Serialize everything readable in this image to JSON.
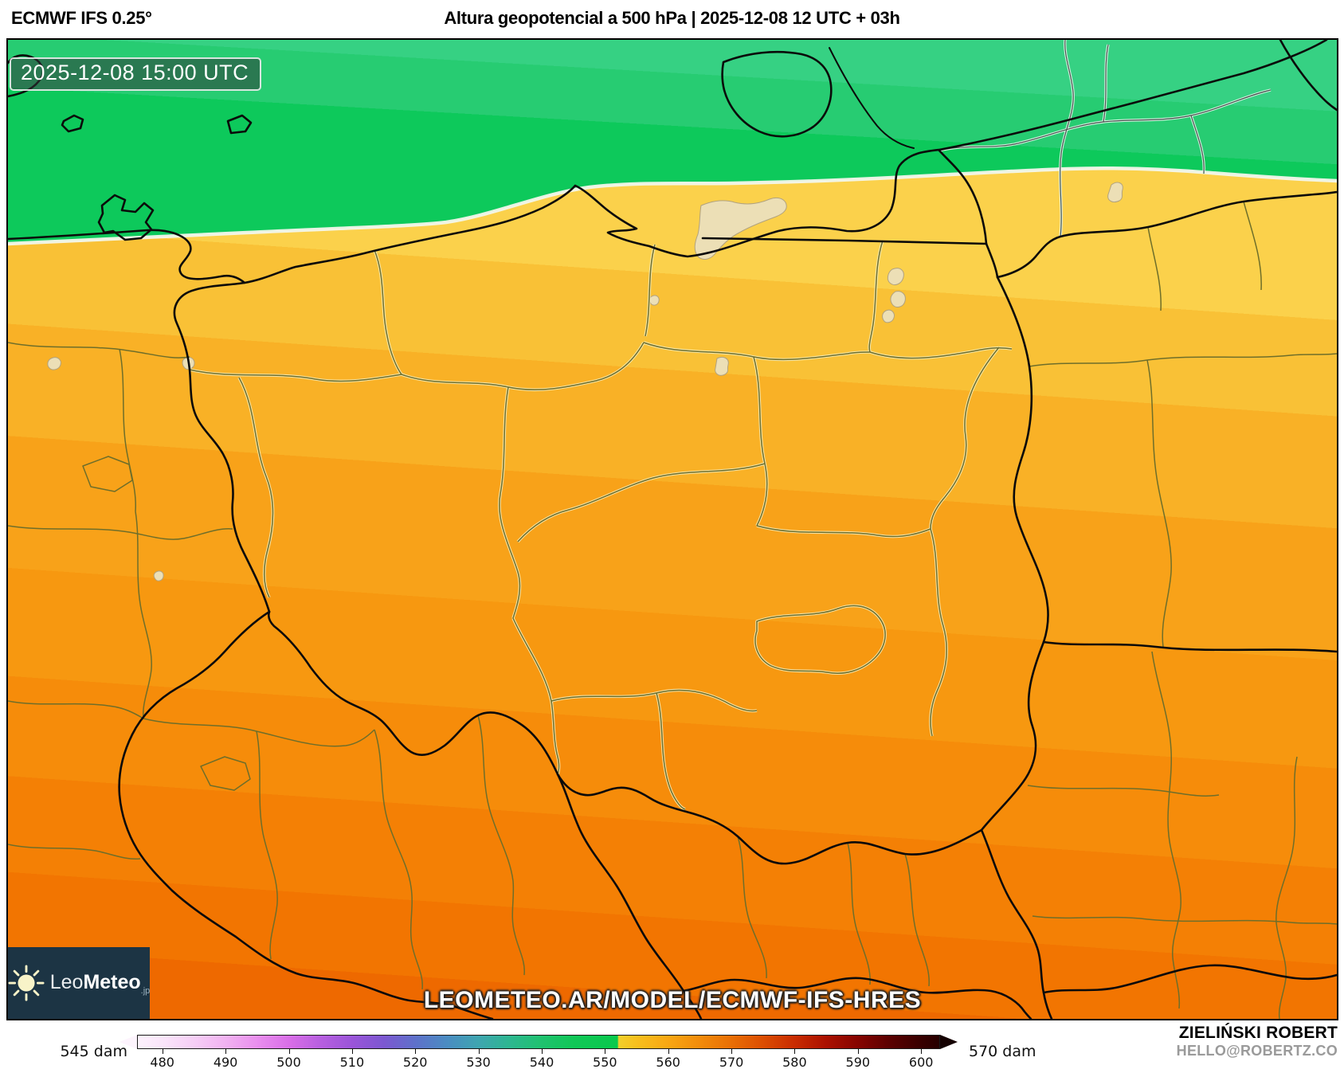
{
  "header": {
    "model": "ECMWF IFS 0.25°",
    "title": "Altura geopotencial a 500 hPa | 2025-12-08 12 UTC + 03h"
  },
  "map": {
    "timestamp": "2025-12-08 15:00 UTC",
    "watermark": "LEOMETEO.AR/MODEL/ECMWF-IFS-HRES",
    "logo": {
      "icon": "sun-icon",
      "prefix": "Leo",
      "bold": "Meteo",
      "suffix": ".jp"
    },
    "contour_color": "#f3f7ec",
    "warm_bands": [
      {
        "to": 345,
        "color": "#fbd14b"
      },
      {
        "to": 465,
        "color": "#f9c136"
      },
      {
        "to": 605,
        "color": "#f9b126"
      },
      {
        "to": 770,
        "color": "#f8a219"
      },
      {
        "to": 905,
        "color": "#f79810"
      },
      {
        "to": 1030,
        "color": "#f68c0a"
      },
      {
        "to": 1150,
        "color": "#f48005"
      },
      {
        "to": 1245,
        "color": "#f27501"
      },
      {
        "to": 1340,
        "color": "#ee6900"
      }
    ],
    "green_bands": [
      {
        "to": 0.18,
        "color": "#36d183"
      },
      {
        "to": 0.42,
        "color": "#27cc72"
      },
      {
        "to": 1.0,
        "color": "#0dc95b"
      }
    ]
  },
  "colorbar": {
    "range": [
      476,
      603
    ],
    "min_label": "545 dam",
    "max_label": "570 dam",
    "ticks": [
      480,
      490,
      500,
      510,
      520,
      530,
      540,
      550,
      560,
      570,
      580,
      590,
      600
    ],
    "under_color": "#fdf4fd",
    "over_color": "#150000",
    "stops": [
      [
        476,
        "#fdf2fd"
      ],
      [
        480,
        "#fae5fa"
      ],
      [
        485,
        "#f6cef6"
      ],
      [
        490,
        "#f1b2f1"
      ],
      [
        495,
        "#e98eee"
      ],
      [
        500,
        "#d96ee8"
      ],
      [
        505,
        "#b75fe0"
      ],
      [
        510,
        "#9a55d9"
      ],
      [
        515,
        "#7c58d1"
      ],
      [
        520,
        "#5e71ca"
      ],
      [
        525,
        "#4a8cc2"
      ],
      [
        530,
        "#3ea5b0"
      ],
      [
        535,
        "#2db790"
      ],
      [
        540,
        "#1fc26f"
      ],
      [
        545,
        "#11c757"
      ],
      [
        552,
        "#09c94c"
      ],
      [
        552.2,
        "#f2cf2b"
      ],
      [
        555,
        "#f7c01e"
      ],
      [
        560,
        "#f8a713"
      ],
      [
        565,
        "#f28c0b"
      ],
      [
        570,
        "#e96f05"
      ],
      [
        575,
        "#dc4e02"
      ],
      [
        580,
        "#c92c01"
      ],
      [
        585,
        "#ab1100"
      ],
      [
        590,
        "#870400"
      ],
      [
        595,
        "#5c0000"
      ],
      [
        600,
        "#390000"
      ],
      [
        603,
        "#260000"
      ]
    ]
  },
  "credits": {
    "author": "ZIELIŃSKI ROBERT",
    "email": "HELLO@ROBERTZ.CO"
  }
}
